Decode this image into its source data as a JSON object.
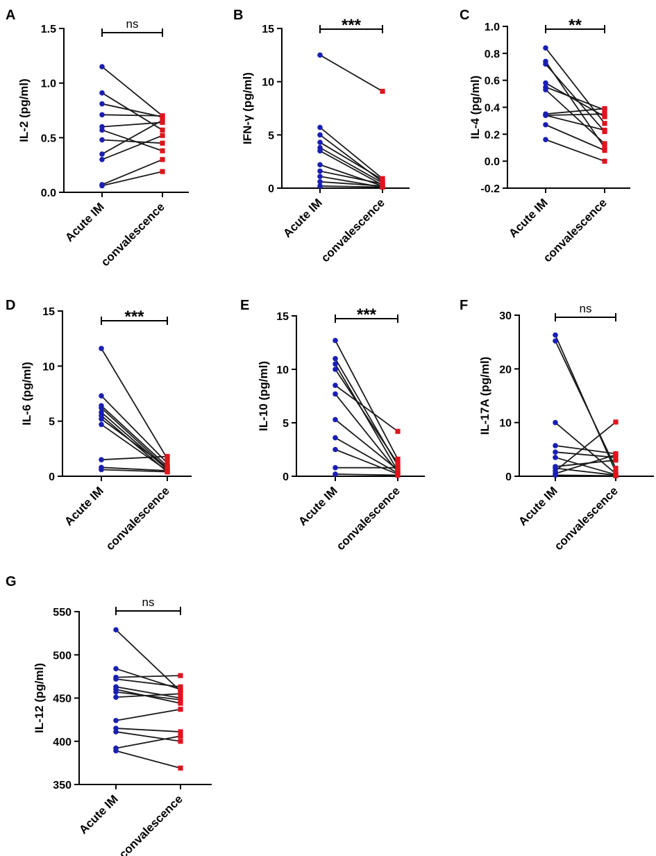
{
  "colors": {
    "acute": "#1a1fb3",
    "conv": "#e0141c",
    "line": "#1a1a1a",
    "axis": "#000000"
  },
  "chart_data": [
    {
      "panel": "A",
      "type": "scatter",
      "ylabel": "IL-2 (pg/ml)",
      "categories": [
        "Acute IM",
        "convalescence"
      ],
      "ylim": [
        0,
        1.5
      ],
      "yticks": [
        "0.0",
        "0.5",
        "1.0",
        "1.5"
      ],
      "significance": "ns",
      "pairs": [
        [
          1.15,
          0.7
        ],
        [
          0.91,
          0.57
        ],
        [
          0.81,
          0.69
        ],
        [
          0.71,
          0.7
        ],
        [
          0.6,
          0.64
        ],
        [
          0.57,
          0.38
        ],
        [
          0.48,
          0.45
        ],
        [
          0.35,
          0.66
        ],
        [
          0.3,
          0.52
        ],
        [
          0.07,
          0.3
        ],
        [
          0.06,
          0.19
        ]
      ]
    },
    {
      "panel": "B",
      "type": "scatter",
      "ylabel": "IFN-γ (pg/ml)",
      "categories": [
        "Acute IM",
        "convalescence"
      ],
      "ylim": [
        0,
        15
      ],
      "yticks": [
        "0",
        "5",
        "10",
        "15"
      ],
      "significance": "***",
      "pairs": [
        [
          12.5,
          9.1
        ],
        [
          5.7,
          0.9
        ],
        [
          5.0,
          0.6
        ],
        [
          4.3,
          0.8
        ],
        [
          3.8,
          0.5
        ],
        [
          3.5,
          0.3
        ],
        [
          2.2,
          0.2
        ],
        [
          1.6,
          0.4
        ],
        [
          1.1,
          0.1
        ],
        [
          0.6,
          0.2
        ],
        [
          0.2,
          0.1
        ]
      ]
    },
    {
      "panel": "C",
      "type": "scatter",
      "ylabel": "IL-4 (pg/ml)",
      "categories": [
        "Acute IM",
        "convalescence"
      ],
      "ylim": [
        -0.2,
        1.0
      ],
      "yticks": [
        "-0.2",
        "0.0",
        "0.2",
        "0.4",
        "0.6",
        "0.8",
        "1.0"
      ],
      "significance": "**",
      "pairs": [
        [
          0.84,
          0.28
        ],
        [
          0.74,
          0.1
        ],
        [
          0.72,
          0.22
        ],
        [
          0.58,
          0.33
        ],
        [
          0.55,
          0.38
        ],
        [
          0.53,
          0.13
        ],
        [
          0.35,
          0.39
        ],
        [
          0.34,
          0.23
        ],
        [
          0.34,
          0.35
        ],
        [
          0.27,
          0.08
        ],
        [
          0.16,
          0.0
        ]
      ]
    },
    {
      "panel": "D",
      "type": "scatter",
      "ylabel": "IL-6 (pg/ml)",
      "categories": [
        "Acute IM",
        "convalescence"
      ],
      "ylim": [
        0,
        15
      ],
      "yticks": [
        "0",
        "5",
        "10",
        "15"
      ],
      "significance": "***",
      "pairs": [
        [
          11.6,
          1.6
        ],
        [
          7.3,
          1.2
        ],
        [
          6.4,
          0.9
        ],
        [
          6.2,
          0.7
        ],
        [
          5.8,
          0.6
        ],
        [
          5.5,
          0.4
        ],
        [
          5.2,
          0.8
        ],
        [
          4.7,
          0.5
        ],
        [
          1.5,
          1.8
        ],
        [
          0.8,
          0.5
        ],
        [
          0.6,
          0.4
        ]
      ]
    },
    {
      "panel": "E",
      "type": "scatter",
      "ylabel": "IL-10 (pg/ml)",
      "categories": [
        "Acute IM",
        "convalescence"
      ],
      "ylim": [
        0,
        15
      ],
      "yticks": [
        "0",
        "5",
        "10",
        "15"
      ],
      "significance": "***",
      "pairs": [
        [
          12.7,
          1.6
        ],
        [
          11.0,
          1.0
        ],
        [
          10.5,
          0.5
        ],
        [
          10.0,
          1.2
        ],
        [
          8.5,
          4.2
        ],
        [
          7.7,
          0.4
        ],
        [
          5.3,
          0.6
        ],
        [
          3.6,
          0.3
        ],
        [
          2.5,
          0.2
        ],
        [
          0.8,
          0.8
        ],
        [
          0.2,
          0.1
        ]
      ]
    },
    {
      "panel": "F",
      "type": "scatter",
      "ylabel": "IL-17A (pg/ml)",
      "categories": [
        "Acute IM",
        "convalescence"
      ],
      "ylim": [
        0,
        30
      ],
      "yticks": [
        "0",
        "10",
        "20",
        "30"
      ],
      "significance": "ns",
      "pairs": [
        [
          26.3,
          0.8
        ],
        [
          25.2,
          1.5
        ],
        [
          10.0,
          0.5
        ],
        [
          5.7,
          4.2
        ],
        [
          4.5,
          3.5
        ],
        [
          3.5,
          0.3
        ],
        [
          1.8,
          3.0
        ],
        [
          1.5,
          0.2
        ],
        [
          1.0,
          10.1
        ],
        [
          0.5,
          4.0
        ],
        [
          0.2,
          0.1
        ]
      ]
    },
    {
      "panel": "G",
      "type": "scatter",
      "ylabel": "IL-12 (pg/ml)",
      "categories": [
        "Acute IM",
        "convalescence"
      ],
      "ylim": [
        350,
        550
      ],
      "yticks": [
        "350",
        "400",
        "450",
        "500",
        "550"
      ],
      "significance": "ns",
      "pairs": [
        [
          529,
          458
        ],
        [
          484,
          460
        ],
        [
          474,
          476
        ],
        [
          472,
          463
        ],
        [
          463,
          450
        ],
        [
          460,
          444
        ],
        [
          457,
          448
        ],
        [
          451,
          455
        ],
        [
          424,
          437
        ],
        [
          415,
          411
        ],
        [
          411,
          400
        ],
        [
          392,
          406
        ],
        [
          389,
          369
        ]
      ]
    }
  ]
}
